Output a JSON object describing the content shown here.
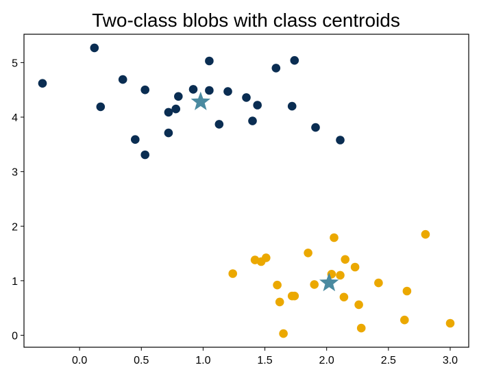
{
  "chart_data": {
    "type": "scatter",
    "title": "Two-class blobs with class centroids",
    "xlabel": "",
    "ylabel": "",
    "xlim": [
      -0.45,
      3.15
    ],
    "ylim": [
      -0.22,
      5.52
    ],
    "xticks": [
      0.0,
      0.5,
      1.0,
      1.5,
      2.0,
      2.5,
      3.0
    ],
    "xtick_labels": [
      "0.0",
      "0.5",
      "1.0",
      "1.5",
      "2.0",
      "2.5",
      "3.0"
    ],
    "yticks": [
      0,
      1,
      2,
      3,
      4,
      5
    ],
    "ytick_labels": [
      "0",
      "1",
      "2",
      "3",
      "4",
      "5"
    ],
    "grid": false,
    "legend": "none",
    "series": [
      {
        "color": "#0a2d52",
        "marker": "circle",
        "points": [
          [
            -0.3,
            4.62
          ],
          [
            0.12,
            5.27
          ],
          [
            0.17,
            4.19
          ],
          [
            0.35,
            4.69
          ],
          [
            0.45,
            3.59
          ],
          [
            0.53,
            4.5
          ],
          [
            0.53,
            3.31
          ],
          [
            0.72,
            4.09
          ],
          [
            0.72,
            3.71
          ],
          [
            0.78,
            4.15
          ],
          [
            0.8,
            4.38
          ],
          [
            0.92,
            4.51
          ],
          [
            1.05,
            5.03
          ],
          [
            1.05,
            4.49
          ],
          [
            1.13,
            3.87
          ],
          [
            1.2,
            4.47
          ],
          [
            1.35,
            4.36
          ],
          [
            1.4,
            3.93
          ],
          [
            1.44,
            4.22
          ],
          [
            1.59,
            4.9
          ],
          [
            1.72,
            4.2
          ],
          [
            1.74,
            5.04
          ],
          [
            1.91,
            3.81
          ],
          [
            2.11,
            3.58
          ]
        ]
      },
      {
        "color": "#eba800",
        "marker": "circle",
        "points": [
          [
            1.24,
            1.13
          ],
          [
            1.42,
            1.38
          ],
          [
            1.47,
            1.35
          ],
          [
            1.51,
            1.42
          ],
          [
            1.6,
            0.92
          ],
          [
            1.62,
            0.61
          ],
          [
            1.65,
            0.03
          ],
          [
            1.72,
            0.72
          ],
          [
            1.74,
            0.72
          ],
          [
            1.85,
            1.51
          ],
          [
            1.9,
            0.93
          ],
          [
            2.04,
            1.12
          ],
          [
            2.06,
            1.79
          ],
          [
            2.11,
            1.1
          ],
          [
            2.14,
            0.7
          ],
          [
            2.15,
            1.39
          ],
          [
            2.23,
            1.25
          ],
          [
            2.26,
            0.56
          ],
          [
            2.28,
            0.13
          ],
          [
            2.42,
            0.96
          ],
          [
            2.63,
            0.28
          ],
          [
            2.65,
            0.81
          ],
          [
            2.8,
            1.85
          ],
          [
            3.0,
            0.22
          ]
        ]
      }
    ],
    "centroids": {
      "color": "#4a8aa0",
      "marker": "star",
      "points": [
        [
          0.98,
          4.28
        ],
        [
          2.02,
          0.96
        ]
      ]
    }
  }
}
